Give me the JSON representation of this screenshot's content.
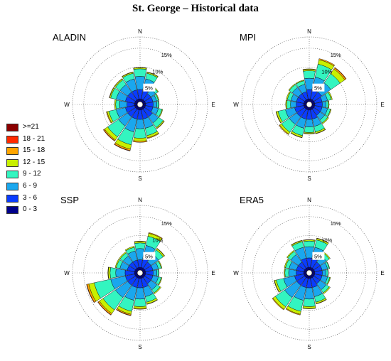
{
  "title": "St. George – Historical data",
  "legend": [
    {
      "label": ">=21",
      "color": "#8b0000"
    },
    {
      "label": "18 - 21",
      "color": "#ff2a00"
    },
    {
      "label": "15 - 18",
      "color": "#ffa500"
    },
    {
      "label": "12 - 15",
      "color": "#c8f000"
    },
    {
      "label": "9 - 12",
      "color": "#33f5c0"
    },
    {
      "label": "6 - 9",
      "color": "#1aa7ee"
    },
    {
      "label": "3 - 6",
      "color": "#0a3cff"
    },
    {
      "label": "0 - 3",
      "color": "#00008b"
    }
  ],
  "chart_data": [
    {
      "type": "windrose",
      "title": "ALADIN",
      "directions": [
        "N",
        "NNE",
        "NE",
        "ENE",
        "E",
        "ESE",
        "SE",
        "SSE",
        "S",
        "SSW",
        "SW",
        "WSW",
        "W",
        "WNW",
        "NW",
        "NNW"
      ],
      "bins": [
        "0 - 3",
        "3 - 6",
        "6 - 9",
        "9 - 12",
        "12 - 15",
        "15 - 18",
        "18 - 21",
        ">=21"
      ],
      "radial_ticks": [
        "5%",
        "10%",
        "15%"
      ],
      "rmax": 18,
      "cardinal_labels": [
        "N",
        "E",
        "S",
        "W"
      ],
      "frequencies": [
        [
          1.5,
          2.5,
          3.5,
          2.0,
          0.3,
          0.1,
          0,
          0
        ],
        [
          1.5,
          2.5,
          3.0,
          1.5,
          0.3,
          0.1,
          0,
          0
        ],
        [
          1.5,
          2.0,
          1.5,
          0.8,
          0.2,
          0,
          0,
          0
        ],
        [
          1.5,
          2.0,
          1.0,
          0.5,
          0.2,
          0,
          0,
          0
        ],
        [
          1.5,
          2.0,
          1.0,
          0.5,
          0.1,
          0,
          0,
          0
        ],
        [
          1.5,
          2.0,
          1.5,
          1.0,
          0.2,
          0,
          0,
          0
        ],
        [
          1.5,
          2.5,
          2.0,
          1.5,
          0.3,
          0.1,
          0,
          0
        ],
        [
          1.5,
          2.5,
          2.5,
          2.0,
          0.6,
          0.2,
          0,
          0
        ],
        [
          1.5,
          2.5,
          2.5,
          2.5,
          0.8,
          0.3,
          0,
          0
        ],
        [
          1.5,
          2.5,
          3.5,
          3.5,
          1.2,
          0.4,
          0.1,
          0
        ],
        [
          1.5,
          2.5,
          3.0,
          3.5,
          1.0,
          0.3,
          0.1,
          0
        ],
        [
          1.5,
          2.5,
          2.5,
          2.0,
          0.5,
          0.2,
          0,
          0
        ],
        [
          1.5,
          2.0,
          2.0,
          1.0,
          0.3,
          0,
          0,
          0
        ],
        [
          1.5,
          2.5,
          2.5,
          1.5,
          0.3,
          0.1,
          0,
          0
        ],
        [
          1.5,
          2.5,
          2.5,
          1.5,
          0.3,
          0.1,
          0,
          0
        ],
        [
          1.5,
          2.5,
          3.0,
          1.5,
          0.3,
          0.1,
          0,
          0
        ]
      ]
    },
    {
      "type": "windrose",
      "title": "MPI",
      "directions": [
        "N",
        "NNE",
        "NE",
        "ENE",
        "E",
        "ESE",
        "SE",
        "SSE",
        "S",
        "SSW",
        "SW",
        "WSW",
        "W",
        "WNW",
        "NW",
        "NNW"
      ],
      "bins": [
        "0 - 3",
        "3 - 6",
        "6 - 9",
        "9 - 12",
        "12 - 15",
        "15 - 18",
        "18 - 21",
        ">=21"
      ],
      "radial_ticks": [
        "5%",
        "10%",
        "15%"
      ],
      "rmax": 18,
      "cardinal_labels": [
        "N",
        "E",
        "S",
        "W"
      ],
      "frequencies": [
        [
          1.5,
          2.5,
          3.0,
          2.0,
          0.4,
          0.1,
          0,
          0
        ],
        [
          1.5,
          2.5,
          3.5,
          3.5,
          1.2,
          0.3,
          0,
          0
        ],
        [
          1.5,
          2.5,
          3.0,
          3.0,
          1.5,
          0.4,
          0.1,
          0
        ],
        [
          1.5,
          2.0,
          1.5,
          1.0,
          0.3,
          0,
          0,
          0
        ],
        [
          1.5,
          2.0,
          1.0,
          0.6,
          0.2,
          0,
          0,
          0
        ],
        [
          1.5,
          2.0,
          1.5,
          0.8,
          0.2,
          0,
          0,
          0
        ],
        [
          1.5,
          2.0,
          1.5,
          1.0,
          0.3,
          0,
          0,
          0
        ],
        [
          1.5,
          2.5,
          2.0,
          1.5,
          0.4,
          0.1,
          0,
          0
        ],
        [
          1.5,
          2.5,
          2.0,
          1.5,
          0.3,
          0.1,
          0,
          0
        ],
        [
          1.5,
          2.5,
          2.5,
          2.0,
          0.5,
          0.1,
          0,
          0
        ],
        [
          1.5,
          2.5,
          2.5,
          2.5,
          0.6,
          0.2,
          0,
          0
        ],
        [
          1.5,
          2.5,
          2.5,
          2.0,
          0.5,
          0.1,
          0,
          0
        ],
        [
          1.5,
          2.0,
          1.5,
          1.0,
          0.3,
          0,
          0,
          0
        ],
        [
          1.5,
          2.0,
          1.5,
          1.0,
          0.3,
          0,
          0,
          0
        ],
        [
          1.5,
          2.0,
          2.0,
          1.0,
          0.2,
          0,
          0,
          0
        ],
        [
          1.5,
          2.0,
          2.0,
          1.0,
          0.2,
          0,
          0,
          0
        ]
      ]
    },
    {
      "type": "windrose",
      "title": "SSP",
      "directions": [
        "N",
        "NNE",
        "NE",
        "ENE",
        "E",
        "ESE",
        "SE",
        "SSE",
        "S",
        "SSW",
        "SW",
        "WSW",
        "W",
        "WNW",
        "NW",
        "NNW"
      ],
      "bins": [
        "0 - 3",
        "3 - 6",
        "6 - 9",
        "9 - 12",
        "12 - 15",
        "15 - 18",
        "18 - 21",
        ">=21"
      ],
      "radial_ticks": [
        "5%",
        "10%",
        "15%"
      ],
      "rmax": 18,
      "cardinal_labels": [
        "N",
        "E",
        "S",
        "W"
      ],
      "frequencies": [
        [
          1.5,
          2.0,
          3.0,
          1.5,
          0.4,
          0.1,
          0,
          0
        ],
        [
          1.5,
          2.5,
          3.5,
          2.5,
          0.8,
          0.2,
          0,
          0
        ],
        [
          1.5,
          2.0,
          2.5,
          1.5,
          0.4,
          0.1,
          0,
          0
        ],
        [
          1.5,
          2.0,
          1.5,
          0.8,
          0.2,
          0,
          0,
          0
        ],
        [
          1.5,
          2.0,
          1.0,
          0.5,
          0.1,
          0,
          0,
          0
        ],
        [
          1.5,
          2.0,
          1.5,
          0.8,
          0.2,
          0,
          0,
          0
        ],
        [
          1.5,
          2.0,
          2.0,
          1.0,
          0.3,
          0,
          0,
          0
        ],
        [
          1.5,
          2.5,
          2.5,
          1.5,
          0.5,
          0.1,
          0,
          0
        ],
        [
          1.5,
          2.5,
          3.0,
          2.0,
          0.5,
          0.2,
          0,
          0
        ],
        [
          1.5,
          2.5,
          3.5,
          3.0,
          0.8,
          0.3,
          0.1,
          0
        ],
        [
          1.5,
          2.5,
          4.0,
          4.0,
          1.2,
          0.4,
          0.1,
          0
        ],
        [
          1.5,
          2.5,
          4.0,
          4.5,
          1.5,
          0.5,
          0.1,
          0
        ],
        [
          1.5,
          2.5,
          2.5,
          1.5,
          0.5,
          0.1,
          0,
          0
        ],
        [
          1.5,
          2.0,
          2.0,
          1.0,
          0.3,
          0,
          0,
          0
        ],
        [
          1.5,
          2.0,
          2.0,
          1.0,
          0.3,
          0,
          0,
          0
        ],
        [
          1.5,
          2.0,
          2.5,
          1.0,
          0.3,
          0,
          0,
          0
        ]
      ]
    },
    {
      "type": "windrose",
      "title": "ERA5",
      "directions": [
        "N",
        "NNE",
        "NE",
        "ENE",
        "E",
        "ESE",
        "SE",
        "SSE",
        "S",
        "SSW",
        "SW",
        "WSW",
        "W",
        "WNW",
        "NW",
        "NNW"
      ],
      "bins": [
        "0 - 3",
        "3 - 6",
        "6 - 9",
        "9 - 12",
        "12 - 15",
        "15 - 18",
        "18 - 21",
        ">=21"
      ],
      "radial_ticks": [
        "5%",
        "10%",
        "15%"
      ],
      "rmax": 18,
      "cardinal_labels": [
        "N",
        "E",
        "S",
        "W"
      ],
      "frequencies": [
        [
          1.5,
          2.5,
          3.0,
          1.5,
          0.3,
          0.1,
          0,
          0
        ],
        [
          1.5,
          2.5,
          3.0,
          2.0,
          0.4,
          0.1,
          0,
          0
        ],
        [
          1.5,
          2.0,
          2.0,
          1.0,
          0.3,
          0,
          0,
          0
        ],
        [
          1.5,
          2.0,
          1.5,
          0.5,
          0.1,
          0,
          0,
          0
        ],
        [
          1.5,
          2.0,
          1.0,
          0.5,
          0.1,
          0,
          0,
          0
        ],
        [
          1.5,
          2.0,
          1.5,
          0.6,
          0.2,
          0,
          0,
          0
        ],
        [
          1.5,
          2.0,
          2.0,
          1.0,
          0.3,
          0,
          0,
          0
        ],
        [
          1.5,
          2.5,
          2.5,
          1.5,
          0.4,
          0.1,
          0,
          0
        ],
        [
          1.5,
          2.5,
          3.0,
          2.0,
          0.5,
          0.1,
          0,
          0
        ],
        [
          1.5,
          2.5,
          3.5,
          3.0,
          0.8,
          0.2,
          0,
          0
        ],
        [
          1.5,
          2.5,
          4.0,
          3.0,
          0.8,
          0.2,
          0,
          0
        ],
        [
          1.5,
          2.5,
          3.0,
          2.0,
          0.5,
          0.1,
          0,
          0
        ],
        [
          1.5,
          2.0,
          2.0,
          1.0,
          0.2,
          0,
          0,
          0
        ],
        [
          1.5,
          2.0,
          2.0,
          1.0,
          0.3,
          0,
          0,
          0
        ],
        [
          1.5,
          2.0,
          2.5,
          1.0,
          0.3,
          0,
          0,
          0
        ],
        [
          1.5,
          2.5,
          3.0,
          1.5,
          0.3,
          0.1,
          0,
          0
        ]
      ]
    }
  ]
}
